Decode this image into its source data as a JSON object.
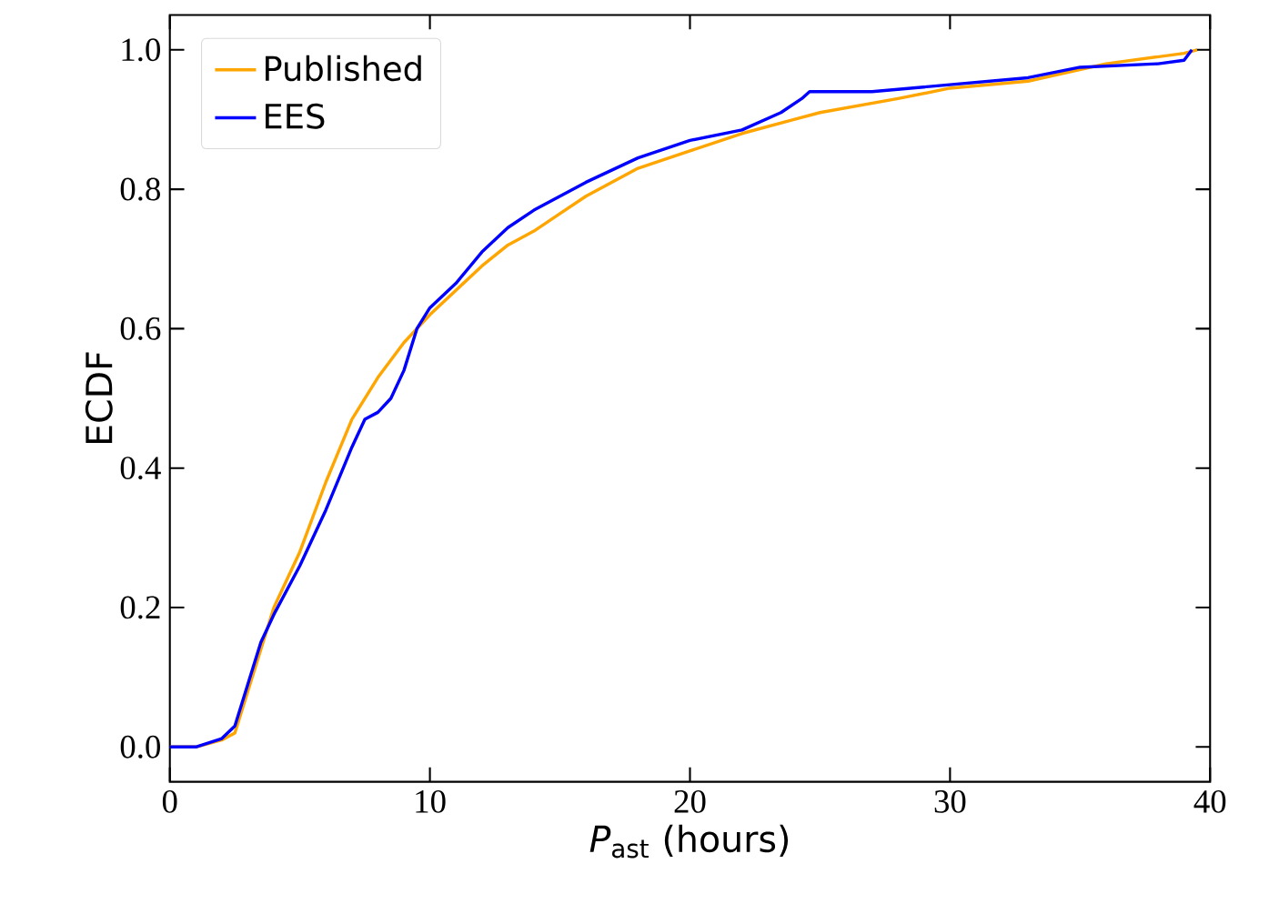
{
  "chart_data": {
    "type": "line",
    "xlabel": "*P*$_{ast}$ (hours)",
    "ylabel": "ECDF",
    "xlim": [
      0,
      40
    ],
    "ylim": [
      -0.05,
      1.05
    ],
    "xticks": [
      0,
      10,
      20,
      30,
      40
    ],
    "yticks": [
      {
        "value": 0,
        "label": "0.0"
      },
      {
        "value": 0.2,
        "label": "0.2"
      },
      {
        "value": 0.4,
        "label": "0.4"
      },
      {
        "value": 0.6,
        "label": "0.6"
      },
      {
        "value": 0.8,
        "label": "0.8"
      },
      {
        "value": 1,
        "label": "1.0"
      }
    ],
    "grid": false,
    "legend": "top left",
    "series": [
      {
        "name": "Published",
        "color": "#ffa500",
        "x": [
          0,
          1,
          2,
          2.5,
          3,
          3.5,
          4,
          5,
          6,
          7,
          8,
          9,
          10,
          11,
          12,
          13,
          14,
          15,
          16,
          18,
          20,
          22,
          24,
          25,
          28,
          30,
          33,
          36,
          39,
          39.5
        ],
        "values": [
          0,
          0,
          0.01,
          0.02,
          0.08,
          0.14,
          0.2,
          0.28,
          0.38,
          0.47,
          0.53,
          0.58,
          0.62,
          0.655,
          0.69,
          0.72,
          0.74,
          0.765,
          0.79,
          0.83,
          0.855,
          0.88,
          0.9,
          0.91,
          0.93,
          0.945,
          0.955,
          0.98,
          0.995,
          1.0
        ]
      },
      {
        "name": "EES",
        "color": "#0000ff",
        "x": [
          0,
          1,
          2,
          2.5,
          3,
          3.5,
          4,
          5,
          6,
          7,
          7.5,
          8,
          8.5,
          9,
          9.5,
          10,
          11,
          12,
          13,
          14,
          15,
          16,
          18,
          20,
          22,
          23.5,
          24.3,
          24.6,
          27,
          30,
          33,
          35,
          38,
          39,
          39.3
        ],
        "values": [
          0,
          0,
          0.012,
          0.03,
          0.09,
          0.15,
          0.19,
          0.26,
          0.34,
          0.43,
          0.47,
          0.48,
          0.5,
          0.54,
          0.6,
          0.63,
          0.665,
          0.71,
          0.745,
          0.77,
          0.79,
          0.81,
          0.845,
          0.87,
          0.885,
          0.91,
          0.93,
          0.94,
          0.94,
          0.95,
          0.96,
          0.975,
          0.98,
          0.985,
          1.0
        ]
      }
    ]
  }
}
